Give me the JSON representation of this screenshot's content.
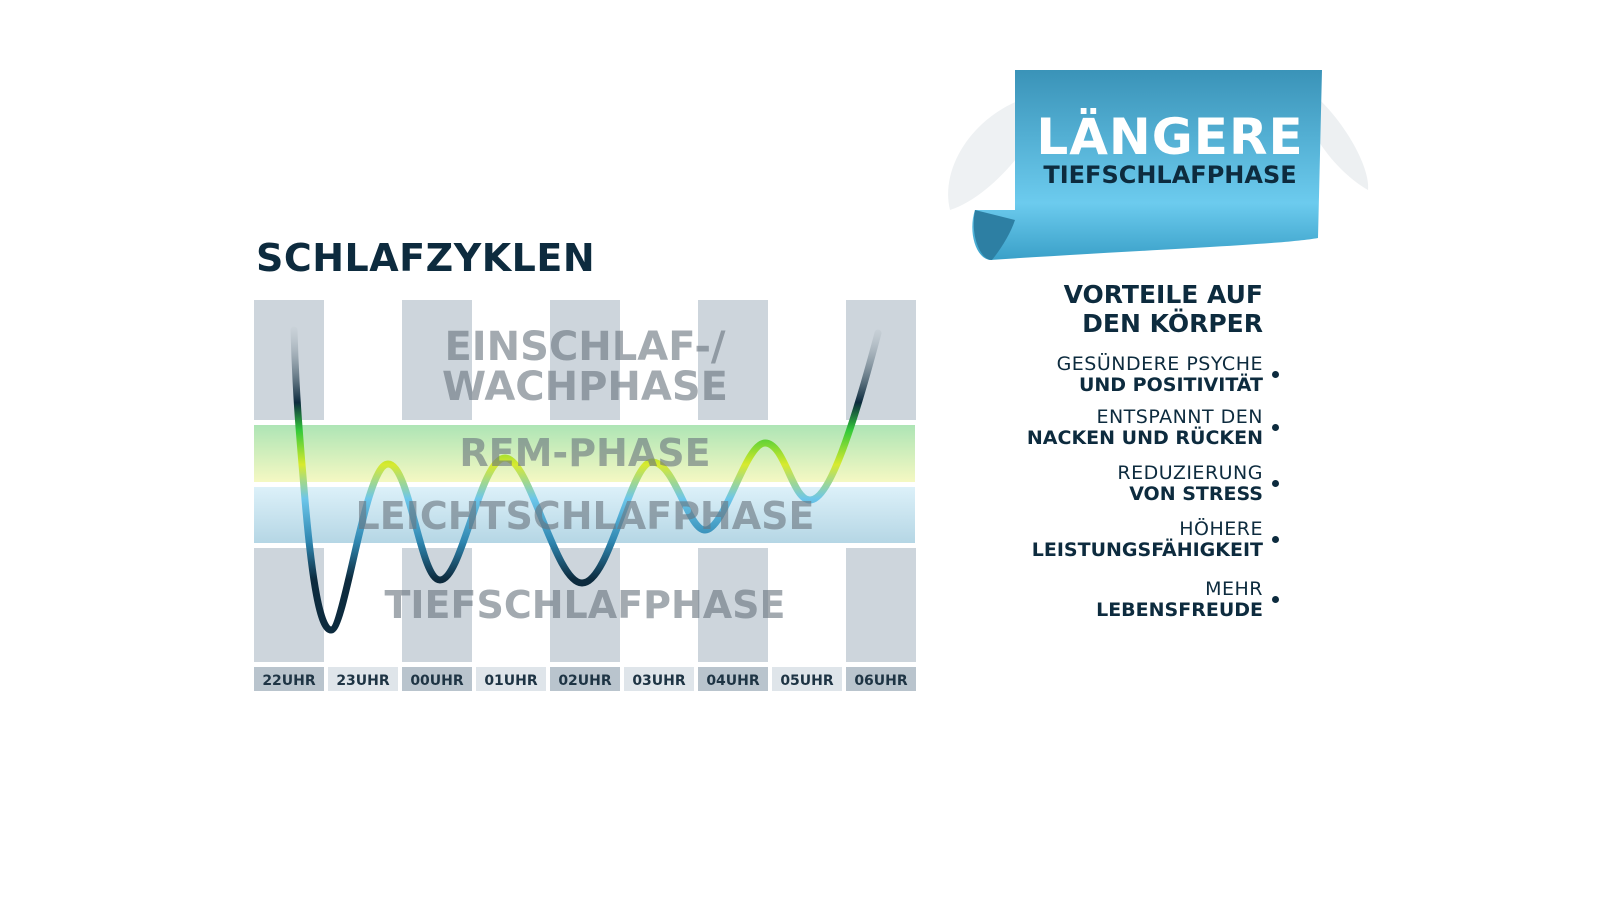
{
  "title": "SCHLAFZYKLEN",
  "phases": {
    "wake_line1": "EINSCHLAF-/",
    "wake_line2": "WACHPHASE",
    "rem": "REM-PHASE",
    "light": "LEICHTSCHLAFPHASE",
    "deep": "TIEFSCHLAFPHASE"
  },
  "hours": [
    "22UHR",
    "23UHR",
    "00UHR",
    "01UHR",
    "02UHR",
    "03UHR",
    "04UHR",
    "05UHR",
    "06UHR"
  ],
  "banner": {
    "main": "LÄNGERE",
    "sub": "TIEFSCHLAFPHASE"
  },
  "benefits": {
    "title_line1": "VORTEILE AUF",
    "title_line2": "DEN KÖRPER",
    "items": [
      {
        "line1": "GESÜNDERE PSYCHE",
        "line2": "UND POSITIVITÄT"
      },
      {
        "line1": "ENTSPANNT DEN",
        "line2": "NACKEN UND RÜCKEN"
      },
      {
        "line1": "REDUZIERUNG",
        "line2": "VON STRESS"
      },
      {
        "line1": "HÖHERE",
        "line2": "LEISTUNGSFÄHIGKEIT"
      },
      {
        "line1": "MEHR",
        "line2": "LEBENSFREUDE"
      }
    ]
  },
  "colors": {
    "navy": "#0d2b3e",
    "banner_blue": "#4aaed4",
    "rem_green": "#a8e0a0",
    "light_blue": "#a9d3e6",
    "column_gray": "#cdd5dc"
  }
}
